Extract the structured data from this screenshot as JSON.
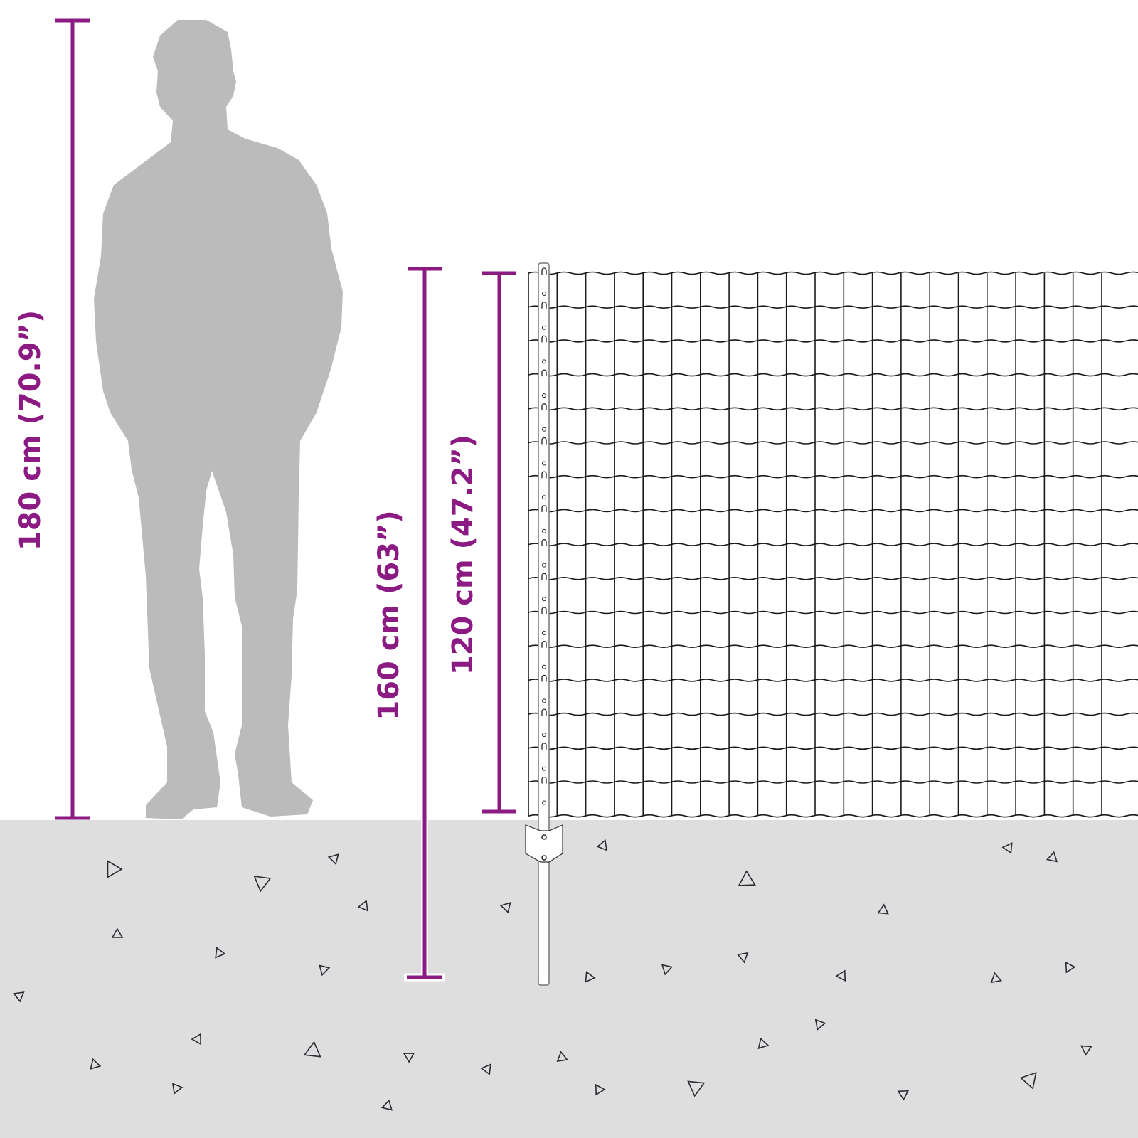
{
  "colors": {
    "accent": "#8b1a83",
    "ground": "#dedede",
    "silhouette": "#bbbbbb",
    "wire": "#1a1a1a"
  },
  "dimensions": {
    "person_height": "180 cm (70.9”)",
    "post_length": "160 cm (63”)",
    "fence_height": "120 cm (47.2”)"
  }
}
